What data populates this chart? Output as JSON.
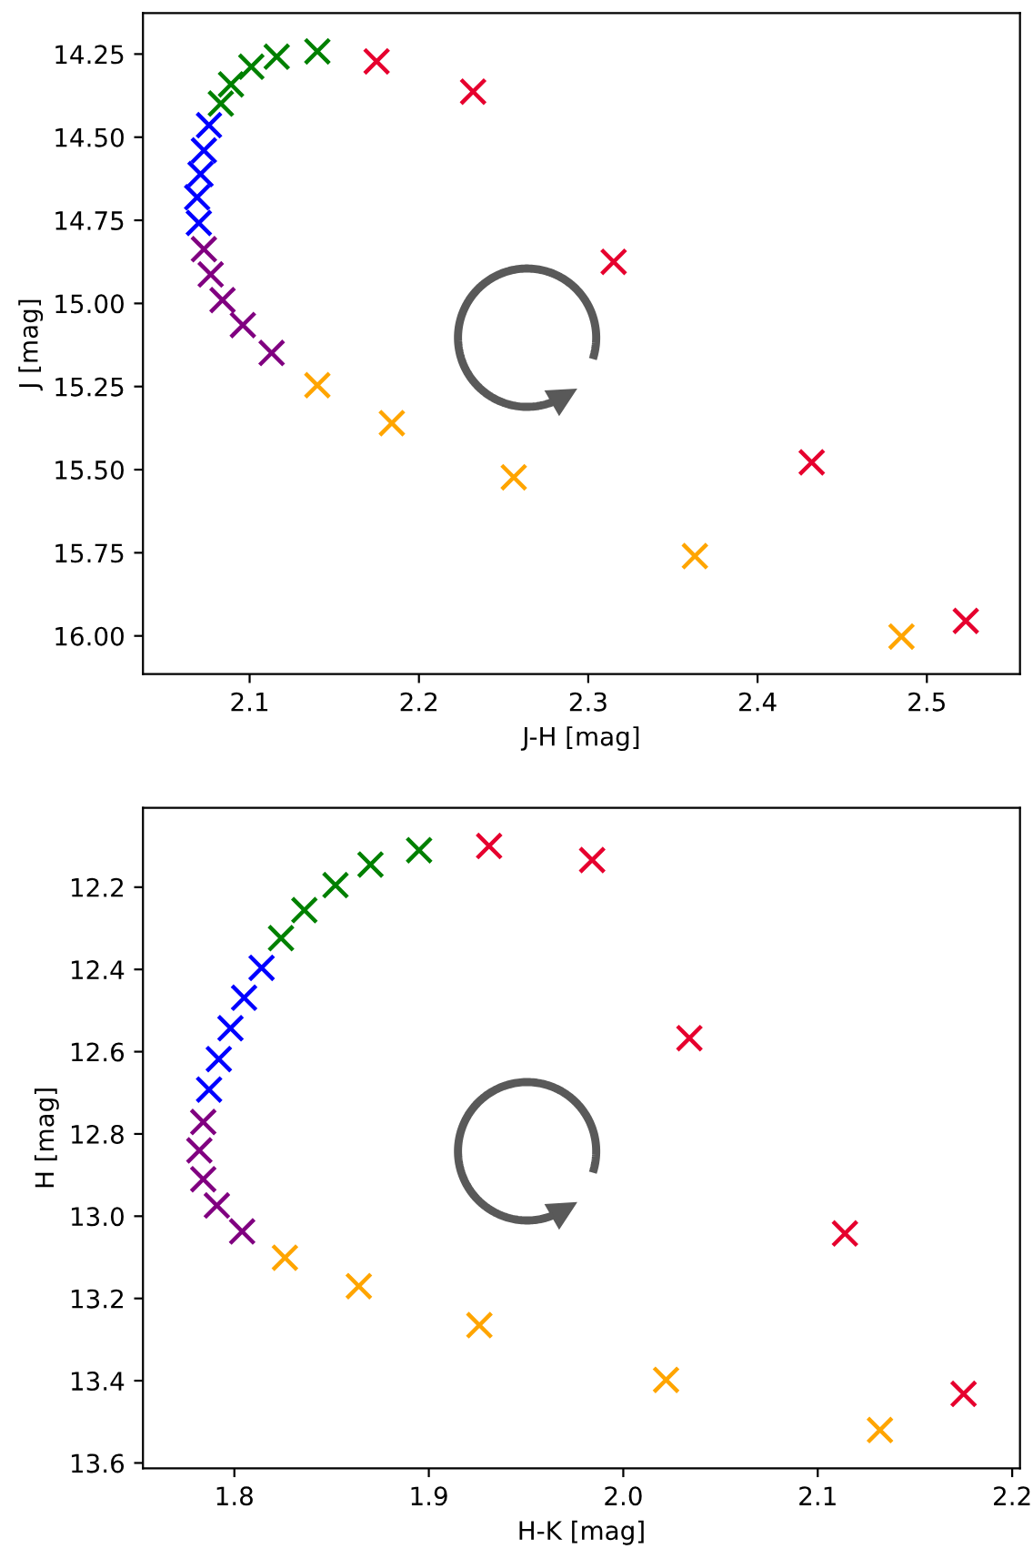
{
  "chart_data": [
    {
      "type": "scatter",
      "xlabel": "J-H [mag]",
      "ylabel": "J [mag]",
      "marker": "cross",
      "grid": false,
      "xlim": [
        2.037,
        2.555
      ],
      "ylim": [
        16.115,
        14.127
      ],
      "xticks": [
        2.1,
        2.2,
        2.3,
        2.4,
        2.5
      ],
      "yticks": [
        {
          "value": 14.25,
          "label": "14.25"
        },
        {
          "value": 14.5,
          "label": "14.50"
        },
        {
          "value": 14.75,
          "label": "14.75"
        },
        {
          "value": 15.0,
          "label": "15.00"
        },
        {
          "value": 15.25,
          "label": "15.25"
        },
        {
          "value": 15.5,
          "label": "15.50"
        },
        {
          "value": 15.75,
          "label": "15.75"
        },
        {
          "value": 16.0,
          "label": "16.00"
        }
      ],
      "series": [
        {
          "color": "#008000",
          "x": [
            2.083,
            2.089,
            2.101,
            2.116,
            2.14
          ],
          "values": [
            14.399,
            14.341,
            14.288,
            14.258,
            14.242
          ]
        },
        {
          "color": "#0000ff",
          "x": [
            2.076,
            2.073,
            2.071,
            2.069,
            2.07
          ],
          "values": [
            14.464,
            14.54,
            14.611,
            14.681,
            14.758
          ]
        },
        {
          "color": "#800080",
          "x": [
            2.073,
            2.077,
            2.084,
            2.096,
            2.113
          ],
          "values": [
            14.837,
            14.913,
            14.99,
            15.065,
            15.149
          ]
        },
        {
          "color": "#ffa500",
          "x": [
            2.14,
            2.184,
            2.256,
            2.363,
            2.485
          ],
          "values": [
            15.246,
            15.36,
            15.523,
            15.76,
            16.002
          ]
        },
        {
          "color": "#e6002e",
          "x": [
            2.175,
            2.232,
            2.315,
            2.432,
            2.523
          ],
          "values": [
            14.272,
            14.363,
            14.875,
            15.478,
            15.955
          ]
        }
      ]
    },
    {
      "type": "scatter",
      "xlabel": "H-K [mag]",
      "ylabel": "H [mag]",
      "marker": "cross",
      "grid": false,
      "xlim": [
        1.753,
        2.204
      ],
      "ylim": [
        13.613,
        12.007
      ],
      "xticks": [
        1.8,
        1.9,
        {
          "value": 2.0,
          "label": "2.0"
        },
        2.1,
        {
          "value": 2.2,
          "label": "2.2"
        }
      ],
      "yticks": [
        12.2,
        12.4,
        12.6,
        12.8,
        {
          "value": 13.0,
          "label": "13.0"
        },
        13.2,
        13.4,
        13.6
      ],
      "series": [
        {
          "color": "#008000",
          "x": [
            1.824,
            1.836,
            1.852,
            1.87,
            1.895
          ],
          "values": [
            12.324,
            12.256,
            12.195,
            12.145,
            12.11
          ]
        },
        {
          "color": "#0000ff",
          "x": [
            1.814,
            1.805,
            1.798,
            1.792,
            1.787
          ],
          "values": [
            12.396,
            12.469,
            12.543,
            12.618,
            12.692
          ]
        },
        {
          "color": "#800080",
          "x": [
            1.784,
            1.782,
            1.784,
            1.791,
            1.804
          ],
          "values": [
            12.771,
            12.84,
            12.91,
            12.974,
            13.037
          ]
        },
        {
          "color": "#ffa500",
          "x": [
            1.826,
            1.864,
            1.926,
            2.022,
            2.132
          ],
          "values": [
            13.101,
            13.17,
            13.265,
            13.398,
            13.52
          ]
        },
        {
          "color": "#e6002e",
          "x": [
            1.931,
            1.984,
            2.034,
            2.114,
            2.175
          ],
          "values": [
            12.1,
            12.134,
            12.567,
            13.042,
            13.432
          ]
        }
      ]
    }
  ]
}
